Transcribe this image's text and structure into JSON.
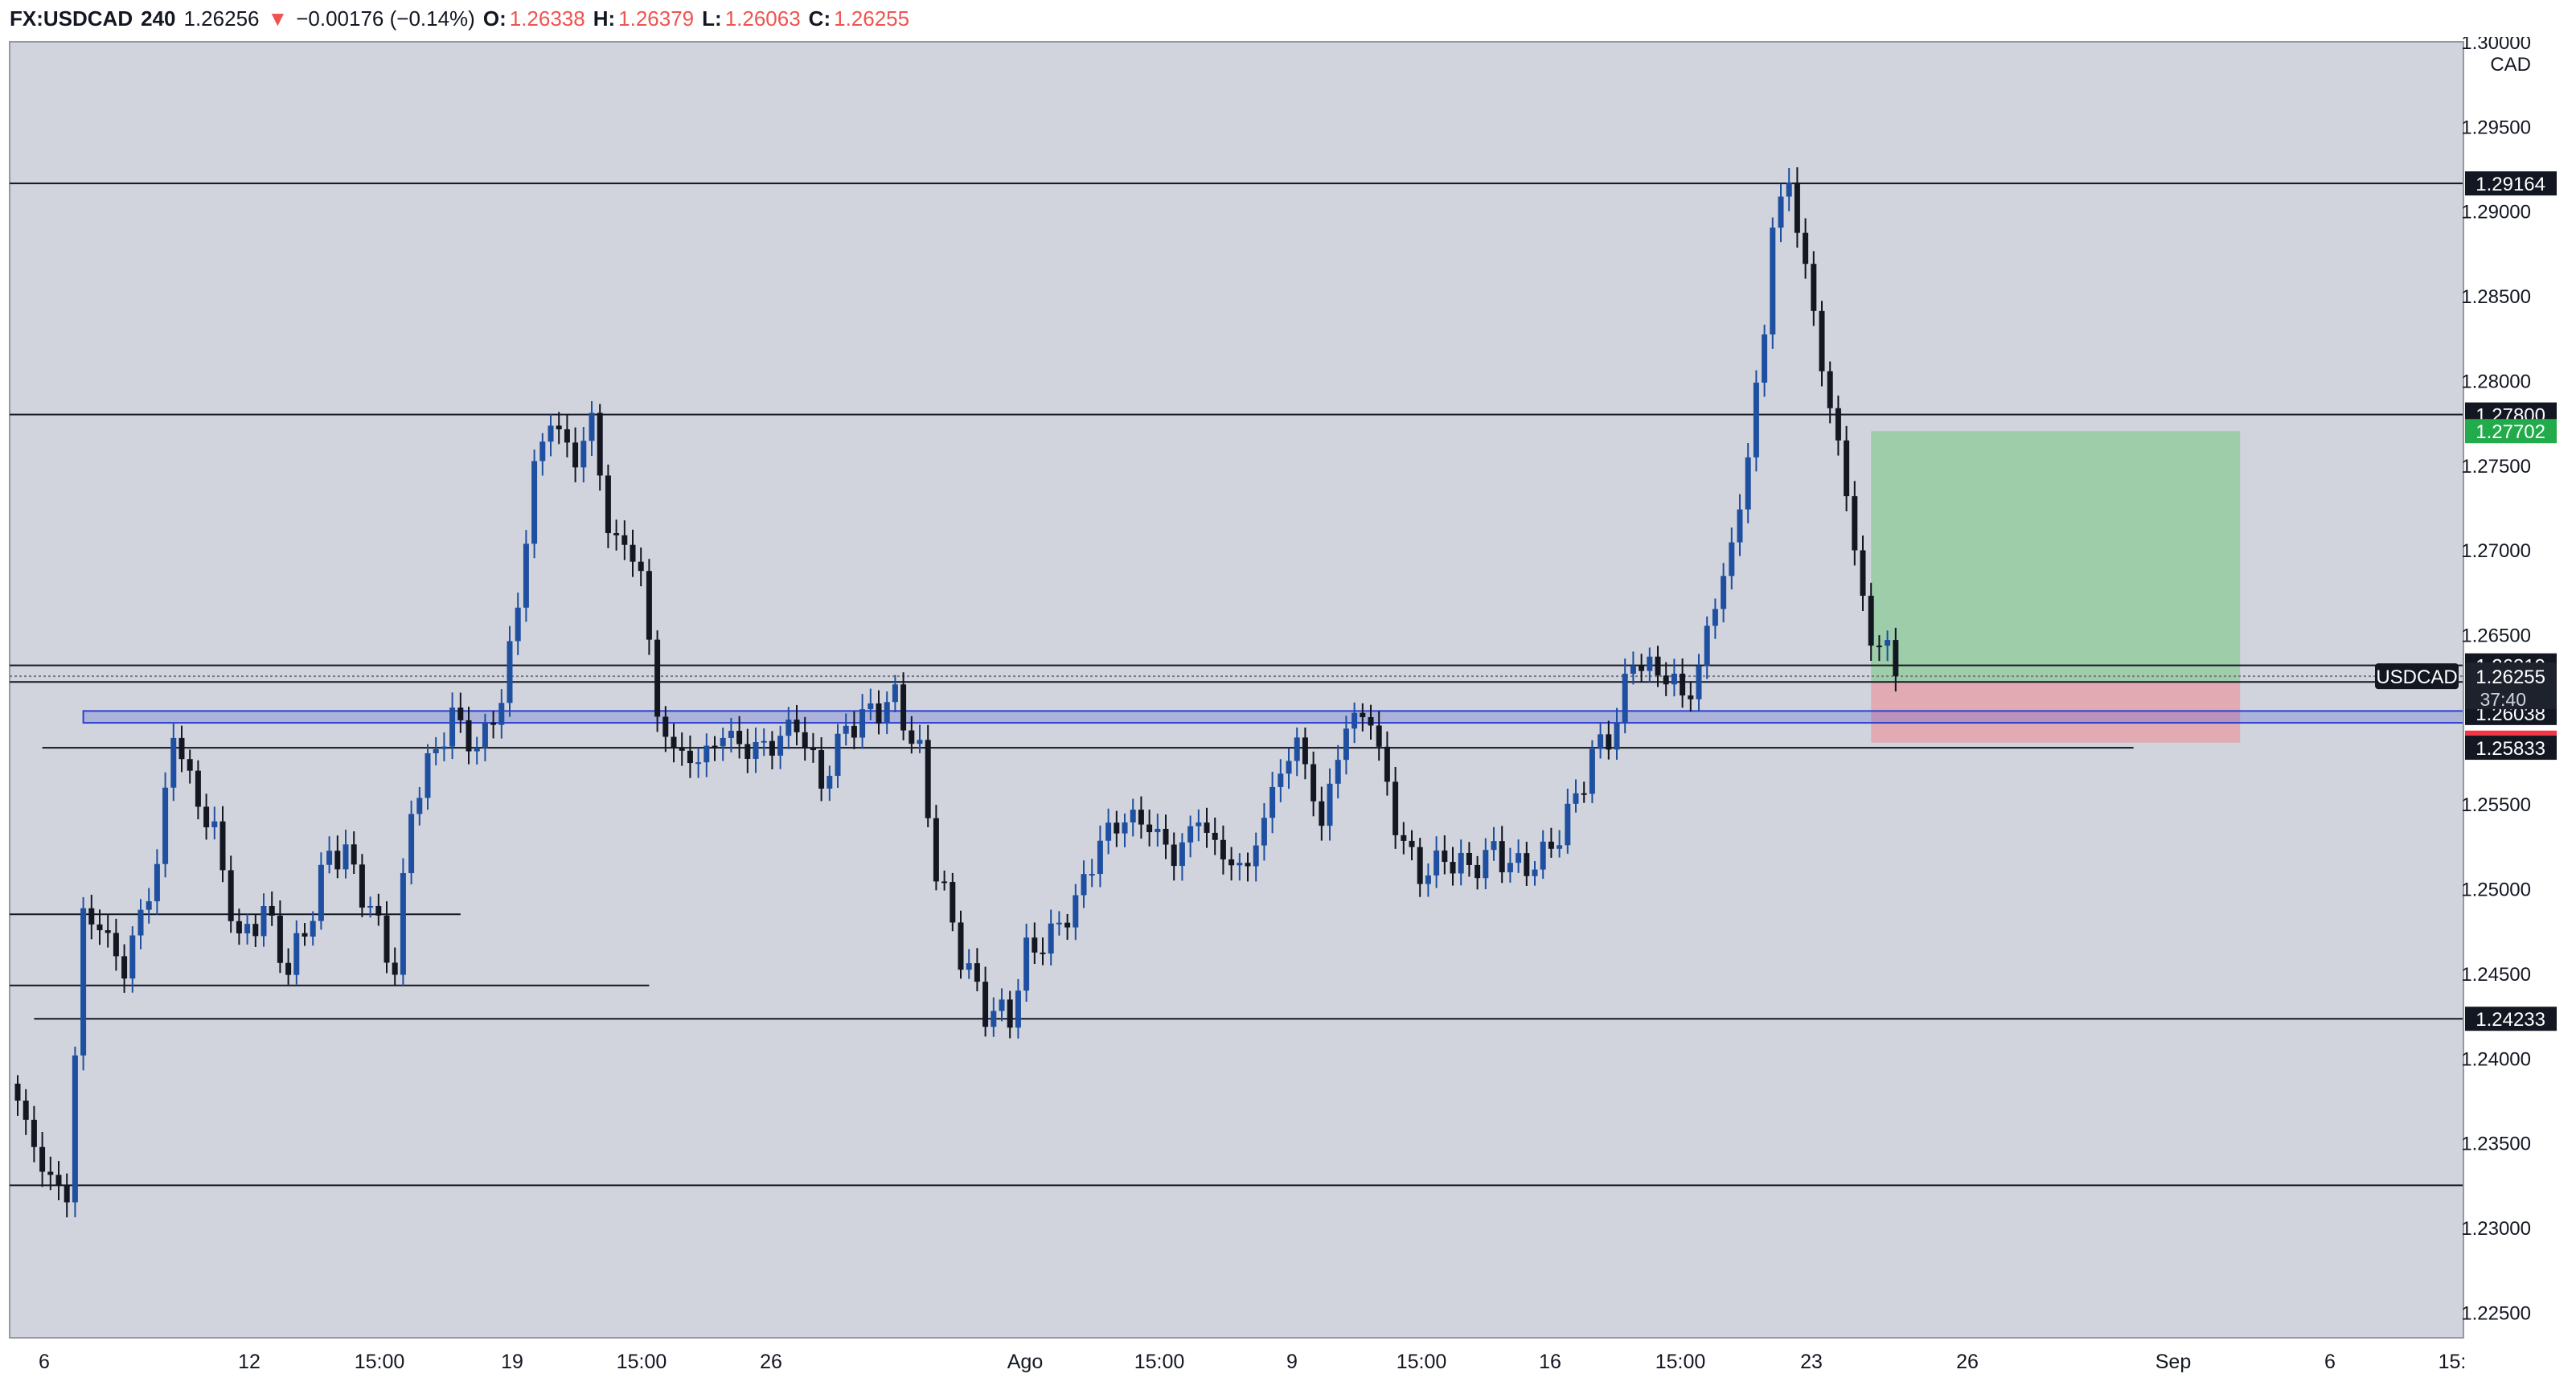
{
  "header": {
    "symbol": "FX:USDCAD",
    "interval": "240",
    "last": "1.26256",
    "change": "−0.00176 (−0.14%)",
    "open_label": "O:",
    "open": "1.26338",
    "high_label": "H:",
    "high": "1.26379",
    "low_label": "L:",
    "low": "1.26063",
    "close_label": "C:",
    "close": "1.26255"
  },
  "axis": {
    "currency": "CAD",
    "ticks": [
      "1.30000",
      "1.29500",
      "1.29000",
      "1.28500",
      "1.28000",
      "1.27500",
      "1.27000",
      "1.26500",
      "1.25500",
      "1.25000",
      "1.24500",
      "1.24000",
      "1.23500",
      "1.23000",
      "1.22500"
    ],
    "tick_values": [
      1.3,
      1.295,
      1.29,
      1.285,
      1.28,
      1.275,
      1.27,
      1.265,
      1.255,
      1.25,
      1.245,
      1.24,
      1.235,
      1.23,
      1.225
    ],
    "price_labels": [
      {
        "text": "1.29164",
        "value": 1.29164,
        "bg": "#131722",
        "fg": "#ffffff"
      },
      {
        "text": "1.27800",
        "value": 1.278,
        "bg": "#131722",
        "fg": "#ffffff"
      },
      {
        "text": "1.27702",
        "value": 1.27702,
        "bg": "#22ab4a",
        "fg": "#ffffff"
      },
      {
        "text": "1.26319",
        "value": 1.26319,
        "bg": "#131722",
        "fg": "#ffffff"
      },
      {
        "text": "1.26221",
        "value": 1.26221,
        "bg": "#787b86",
        "fg": "#ffffff"
      },
      {
        "text": "1.26038",
        "value": 1.26038,
        "bg": "#131722",
        "fg": "#ffffff"
      },
      {
        "text": "1.25863",
        "value": 1.25863,
        "bg": "#f23645",
        "fg": "#ffffff"
      },
      {
        "text": "1.25833",
        "value": 1.25833,
        "bg": "#131722",
        "fg": "#ffffff"
      },
      {
        "text": "1.24233",
        "value": 1.24233,
        "bg": "#131722",
        "fg": "#ffffff"
      }
    ],
    "current": {
      "text": "1.26255",
      "countdown": "37:40",
      "tag": "USDCAD",
      "value": 1.26255
    }
  },
  "time_axis": [
    "6",
    "12",
    "15:00",
    "19",
    "15:00",
    "26",
    "Ago",
    "15:00",
    "9",
    "15:00",
    "16",
    "15:00",
    "23",
    "26",
    "Sep",
    "6",
    "15:"
  ],
  "colors": {
    "background": "#d1d4dc",
    "up": "#1e4fa0",
    "down": "#131722",
    "target": "#9bcca6",
    "stop": "#e3a9b0",
    "zone": "#2b3fd1"
  },
  "chart_data": {
    "type": "candlestick",
    "symbol": "USDCAD",
    "interval": "240",
    "ylim": [
      1.2235,
      1.3
    ],
    "x_range": [
      0,
      300
    ],
    "key_levels": [
      1.29164,
      1.278,
      1.26319,
      1.26221,
      1.25833,
      1.24233,
      1.2325,
      1.2485,
      1.2443
    ],
    "demand_zone": [
      1.2598,
      1.2605
    ],
    "position": {
      "entry": 1.26221,
      "target": 1.27702,
      "stop": 1.25863
    },
    "anchors": [
      [
        0,
        1.2375
      ],
      [
        3,
        1.2335
      ],
      [
        6,
        1.2318
      ],
      [
        8,
        1.2485
      ],
      [
        10,
        1.2478
      ],
      [
        13,
        1.2452
      ],
      [
        15,
        1.2485
      ],
      [
        17,
        1.2513
      ],
      [
        19,
        1.2595
      ],
      [
        21,
        1.2562
      ],
      [
        24,
        1.2532
      ],
      [
        27,
        1.2468
      ],
      [
        30,
        1.2488
      ],
      [
        33,
        1.2452
      ],
      [
        36,
        1.2488
      ],
      [
        38,
        1.2522
      ],
      [
        40,
        1.252
      ],
      [
        43,
        1.2488
      ],
      [
        46,
        1.2452
      ],
      [
        48,
        1.2548
      ],
      [
        50,
        1.2572
      ],
      [
        53,
        1.2602
      ],
      [
        56,
        1.2582
      ],
      [
        59,
        1.2612
      ],
      [
        61,
        1.2668
      ],
      [
        63,
        1.2748
      ],
      [
        65,
        1.2778
      ],
      [
        68,
        1.2752
      ],
      [
        70,
        1.2778
      ],
      [
        72,
        1.2712
      ],
      [
        74,
        1.2702
      ],
      [
        76,
        1.2688
      ],
      [
        78,
        1.2602
      ],
      [
        80,
        1.2582
      ],
      [
        83,
        1.2575
      ],
      [
        86,
        1.2592
      ],
      [
        89,
        1.2582
      ],
      [
        92,
        1.2585
      ],
      [
        95,
        1.2598
      ],
      [
        98,
        1.2562
      ],
      [
        101,
        1.2595
      ],
      [
        104,
        1.2604
      ],
      [
        107,
        1.2612
      ],
      [
        110,
        1.2578
      ],
      [
        112,
        1.2512
      ],
      [
        115,
        1.2462
      ],
      [
        118,
        1.2428
      ],
      [
        121,
        1.2425
      ],
      [
        123,
        1.2462
      ],
      [
        126,
        1.2472
      ],
      [
        129,
        1.2492
      ],
      [
        132,
        1.2528
      ],
      [
        135,
        1.2542
      ],
      [
        138,
        1.2538
      ],
      [
        141,
        1.2518
      ],
      [
        144,
        1.2542
      ],
      [
        147,
        1.2518
      ],
      [
        150,
        1.2512
      ],
      [
        153,
        1.2558
      ],
      [
        156,
        1.2588
      ],
      [
        159,
        1.2538
      ],
      [
        162,
        1.2598
      ],
      [
        165,
        1.2602
      ],
      [
        168,
        1.2538
      ],
      [
        171,
        1.2508
      ],
      [
        174,
        1.2518
      ],
      [
        177,
        1.2512
      ],
      [
        180,
        1.2522
      ],
      [
        183,
        1.2512
      ],
      [
        186,
        1.2518
      ],
      [
        189,
        1.2542
      ],
      [
        192,
        1.2578
      ],
      [
        195,
        1.2598
      ],
      [
        197,
        1.2638
      ],
      [
        199,
        1.2628
      ],
      [
        201,
        1.2628
      ],
      [
        203,
        1.2612
      ],
      [
        205,
        1.2628
      ],
      [
        207,
        1.2672
      ],
      [
        209,
        1.2698
      ],
      [
        211,
        1.2758
      ],
      [
        213,
        1.2828
      ],
      [
        214,
        1.2895
      ],
      [
        216,
        1.2915
      ],
      [
        218,
        1.2868
      ],
      [
        220,
        1.2808
      ],
      [
        222,
        1.2762
      ],
      [
        224,
        1.2702
      ],
      [
        226,
        1.2642
      ],
      [
        228,
        1.2648
      ],
      [
        229,
        1.2626
      ]
    ]
  }
}
